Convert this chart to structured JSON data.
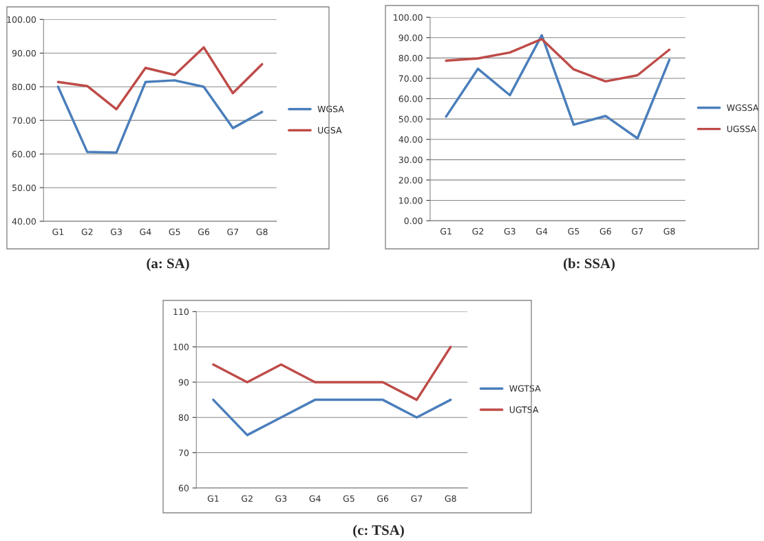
{
  "chart_data": [
    {
      "type": "line",
      "title": "(a: SA)",
      "categories": [
        "G1",
        "G2",
        "G3",
        "G4",
        "G5",
        "G6",
        "G7",
        "G8"
      ],
      "series": [
        {
          "name": "WGSA",
          "color": "#4a7ebb",
          "values": [
            80,
            60.6,
            60.4,
            81.4,
            81.9,
            80,
            67.7,
            72.5
          ]
        },
        {
          "name": "UGSA",
          "color": "#be4b48",
          "values": [
            81.4,
            80.2,
            73.3,
            85.6,
            83.5,
            91.7,
            78.1,
            86.7
          ]
        }
      ],
      "ylim": [
        40,
        100
      ],
      "yticks": [
        {
          "value": 40,
          "label": "40.00"
        },
        {
          "value": 50,
          "label": "50.00"
        },
        {
          "value": 60,
          "label": "60.00"
        },
        {
          "value": 70,
          "label": "70.00"
        },
        {
          "value": 80,
          "label": "80.00"
        },
        {
          "value": 90,
          "label": "90.00"
        },
        {
          "value": 100,
          "label": "100.00"
        }
      ],
      "grid": "y",
      "legend": "right",
      "marker": "none",
      "line_style": "solid"
    },
    {
      "type": "line",
      "title": "(b: SSA)",
      "categories": [
        "G1",
        "G2",
        "G3",
        "G4",
        "G5",
        "G6",
        "G7",
        "G8"
      ],
      "series": [
        {
          "name": "WGSSA",
          "color": "#4a7ebb",
          "values": [
            51.2,
            74.7,
            61.7,
            91.2,
            47.2,
            51.5,
            40.5,
            79.1
          ]
        },
        {
          "name": "UGSSA",
          "color": "#be4b48",
          "values": [
            78.7,
            79.8,
            82.7,
            89.3,
            74.4,
            68.5,
            71.5,
            84.1
          ]
        }
      ],
      "ylim": [
        0,
        100
      ],
      "yticks": [
        {
          "value": 0,
          "label": "0.00"
        },
        {
          "value": 10,
          "label": "10.00"
        },
        {
          "value": 20,
          "label": "20.00"
        },
        {
          "value": 30,
          "label": "30.00"
        },
        {
          "value": 40,
          "label": "40.00"
        },
        {
          "value": 50,
          "label": "50.00"
        },
        {
          "value": 60,
          "label": "60.00"
        },
        {
          "value": 70,
          "label": "70.00"
        },
        {
          "value": 80,
          "label": "80.00"
        },
        {
          "value": 90,
          "label": "90.00"
        },
        {
          "value": 100,
          "label": "100.00"
        }
      ],
      "grid": "y",
      "legend": "right",
      "marker": "none",
      "line_style": "solid"
    },
    {
      "type": "line",
      "title": "(c: TSA)",
      "categories": [
        "G1",
        "G2",
        "G3",
        "G4",
        "G5",
        "G6",
        "G7",
        "G8"
      ],
      "series": [
        {
          "name": "WGTSA",
          "color": "#4a7ebb",
          "values": [
            85,
            75,
            80,
            85,
            85,
            85,
            80,
            85
          ]
        },
        {
          "name": "UGTSA",
          "color": "#be4b48",
          "values": [
            95,
            90,
            95,
            90,
            90,
            90,
            85,
            100
          ]
        }
      ],
      "ylim": [
        60,
        110
      ],
      "yticks": [
        60,
        70,
        80,
        90,
        100,
        110
      ],
      "grid": "y",
      "legend": "right",
      "marker": "none",
      "line_style": "solid"
    }
  ]
}
